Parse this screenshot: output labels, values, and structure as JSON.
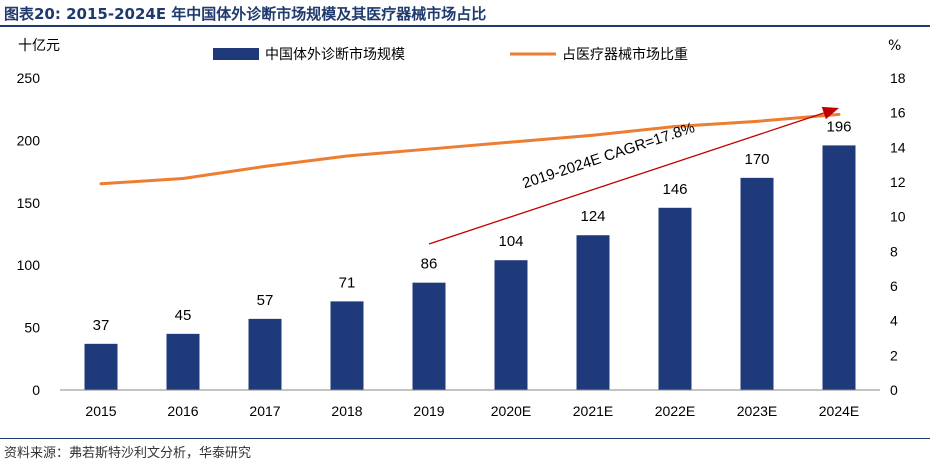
{
  "figure": {
    "title": "图表20:  2015-2024E 年中国体外诊断市场规模及其医疗器械市场占比",
    "source": "资料来源：弗若斯特沙利文分析，华泰研究"
  },
  "chart_data": {
    "type": "bar",
    "categories": [
      "2015",
      "2016",
      "2017",
      "2018",
      "2019",
      "2020E",
      "2021E",
      "2022E",
      "2023E",
      "2024E"
    ],
    "series": [
      {
        "name": "中国体外诊断市场规模",
        "type": "bar",
        "axis": "left",
        "color": "#1f3a7a",
        "values": [
          37,
          45,
          57,
          71,
          86,
          104,
          124,
          146,
          170,
          196
        ]
      },
      {
        "name": "占医疗器械市场比重",
        "type": "line",
        "axis": "right",
        "color": "#ed7d31",
        "values": [
          11.9,
          12.2,
          12.9,
          13.5,
          13.9,
          14.3,
          14.7,
          15.2,
          15.5,
          15.9
        ]
      }
    ],
    "y_left": {
      "unit": "十亿元",
      "min": 0,
      "max": 250,
      "ticks": [
        0,
        50,
        100,
        150,
        200,
        250
      ]
    },
    "y_right": {
      "unit": "%",
      "min": 0,
      "max": 18,
      "ticks": [
        0,
        2,
        4,
        6,
        8,
        10,
        12,
        14,
        16,
        18
      ]
    },
    "annotation": {
      "text": "2019-2024E CAGR=17.8%",
      "arrow_from": {
        "category": "2019",
        "value": 117
      },
      "arrow_to": {
        "category": "2024E",
        "value": 226
      },
      "color": "#c00000"
    },
    "legend_position": "top",
    "grid": false
  }
}
